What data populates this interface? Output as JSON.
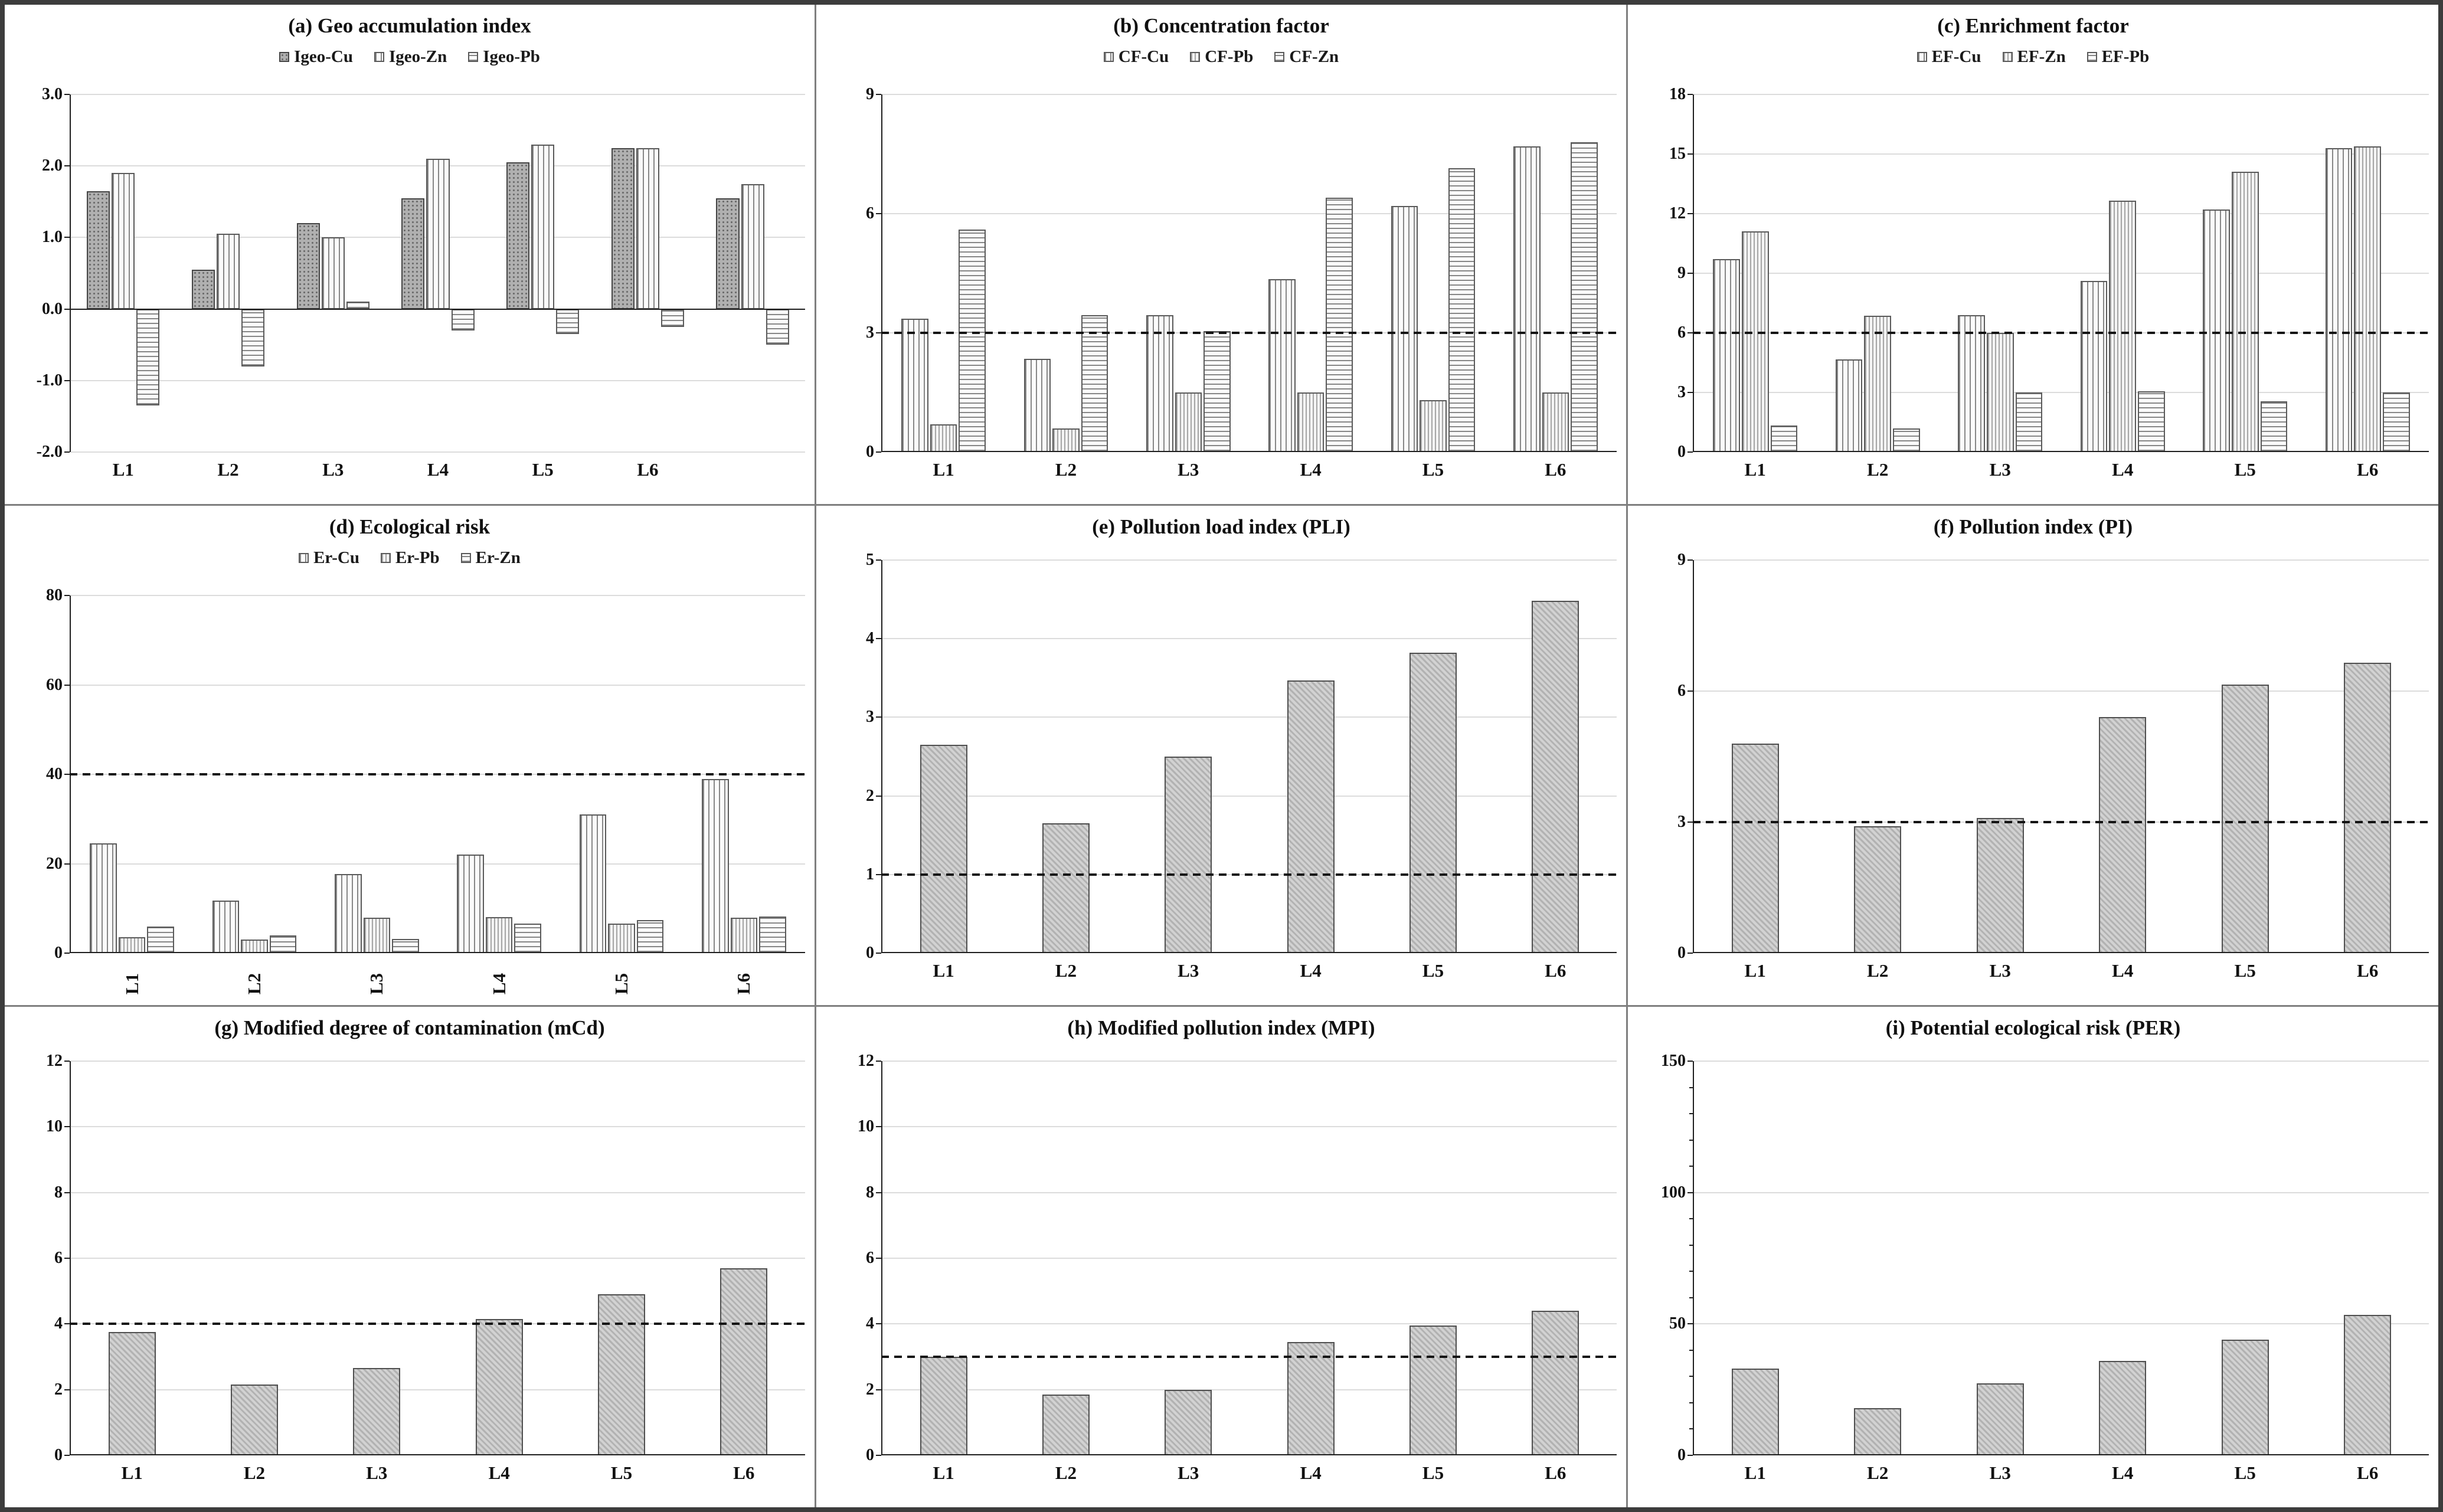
{
  "figure": {
    "background": "#ffffff",
    "outer_border_color": "#3c3c3c",
    "divider_color": "#7f7f7f",
    "gridline_color": "#dcdcdc",
    "axis_color": "#1f1f1f",
    "dashed_line_color": "#141414",
    "bar_gray": "#d2d2d2"
  },
  "chart_data": [
    {
      "key": "a",
      "type": "bar",
      "title": "(a) Geo accumulation index",
      "categories": [
        "L1",
        "L2",
        "L3",
        "L4",
        "L5",
        "L6",
        ""
      ],
      "series": [
        {
          "name": "Igeo-Cu",
          "pattern": "dots",
          "values": [
            1.65,
            0.55,
            1.2,
            1.55,
            2.05,
            2.25,
            1.55
          ]
        },
        {
          "name": "Igeo-Zn",
          "pattern": "vlines",
          "values": [
            1.9,
            1.05,
            1.0,
            2.1,
            2.3,
            2.25,
            1.75
          ]
        },
        {
          "name": "Igeo-Pb",
          "pattern": "hlines",
          "values": [
            -1.35,
            -0.8,
            0.1,
            -0.3,
            -0.35,
            -0.25,
            -0.5
          ]
        }
      ],
      "ylim": [
        -2,
        3
      ],
      "yticks": [
        3,
        2,
        1,
        0,
        -1,
        -2
      ],
      "ytick_decimals": 1,
      "yticks_minor_step": null,
      "dashed_y": null,
      "legend": true,
      "legend_position": "top",
      "grid": true,
      "rotate_xlabels": false
    },
    {
      "key": "b",
      "type": "bar",
      "title": "(b) Concentration factor",
      "categories": [
        "L1",
        "L2",
        "L3",
        "L4",
        "L5",
        "L6"
      ],
      "series": [
        {
          "name": "CF-Cu",
          "pattern": "vlines",
          "values": [
            3.35,
            2.35,
            3.45,
            4.35,
            6.2,
            7.7
          ]
        },
        {
          "name": "CF-Pb",
          "pattern": "vlines2",
          "values": [
            0.7,
            0.6,
            1.5,
            1.5,
            1.3,
            1.5
          ]
        },
        {
          "name": "CF-Zn",
          "pattern": "hlines",
          "values": [
            5.6,
            3.45,
            3.05,
            6.4,
            7.15,
            7.8
          ]
        }
      ],
      "ylim": [
        0,
        9
      ],
      "yticks": [
        9,
        6,
        3,
        0
      ],
      "ytick_decimals": 0,
      "yticks_minor_step": null,
      "dashed_y": 3,
      "legend": true,
      "legend_position": "top",
      "grid": true,
      "rotate_xlabels": false
    },
    {
      "key": "c",
      "type": "bar",
      "title": "(c) Enrichment factor",
      "categories": [
        "L1",
        "L2",
        "L3",
        "L4",
        "L5",
        "L6"
      ],
      "series": [
        {
          "name": "EF-Cu",
          "pattern": "vlines",
          "values": [
            9.7,
            4.65,
            6.9,
            8.6,
            12.2,
            15.3
          ]
        },
        {
          "name": "EF-Zn",
          "pattern": "vlines2",
          "values": [
            11.1,
            6.85,
            6.0,
            12.65,
            14.1,
            15.4
          ]
        },
        {
          "name": "EF-Pb",
          "pattern": "hlines",
          "values": [
            1.35,
            1.2,
            3.0,
            3.05,
            2.55,
            3.0
          ]
        }
      ],
      "ylim": [
        0,
        18
      ],
      "yticks": [
        18,
        15,
        12,
        9,
        6,
        3,
        0
      ],
      "ytick_decimals": 0,
      "yticks_minor_step": null,
      "dashed_y": 6,
      "legend": true,
      "legend_position": "top",
      "grid": true,
      "rotate_xlabels": false
    },
    {
      "key": "d",
      "type": "bar",
      "title": "(d) Ecological risk",
      "categories": [
        "L1",
        "L2",
        "L3",
        "L4",
        "L5",
        "L6"
      ],
      "series": [
        {
          "name": "Er-Cu",
          "pattern": "vlines",
          "values": [
            24.5,
            11.8,
            17.7,
            22.0,
            31.0,
            39.0
          ]
        },
        {
          "name": "Er-Pb",
          "pattern": "vlines2",
          "values": [
            3.5,
            3.0,
            7.9,
            8.0,
            6.6,
            7.9
          ]
        },
        {
          "name": "Er-Zn",
          "pattern": "hlines",
          "values": [
            5.9,
            3.9,
            3.2,
            6.6,
            7.4,
            8.2
          ]
        }
      ],
      "ylim": [
        0,
        80
      ],
      "yticks": [
        80,
        60,
        40,
        20,
        0
      ],
      "ytick_decimals": 0,
      "yticks_minor_step": null,
      "dashed_y": 40,
      "legend": true,
      "legend_position": "top",
      "grid": true,
      "rotate_xlabels": true
    },
    {
      "key": "e",
      "type": "bar",
      "title": "(e) Pollution load index (PLI)",
      "categories": [
        "L1",
        "L2",
        "L3",
        "L4",
        "L5",
        "L6"
      ],
      "series": [
        {
          "name": "PLI",
          "pattern": "diag",
          "values": [
            2.65,
            1.65,
            2.5,
            3.47,
            3.82,
            4.48
          ]
        }
      ],
      "ylim": [
        0,
        5
      ],
      "yticks": [
        5,
        4,
        3,
        2,
        1,
        0
      ],
      "ytick_decimals": 0,
      "yticks_minor_step": null,
      "dashed_y": 1,
      "legend": false,
      "legend_position": "none",
      "grid": true,
      "rotate_xlabels": false
    },
    {
      "key": "f",
      "type": "bar",
      "title": "(f) Pollution index (PI)",
      "categories": [
        "L1",
        "L2",
        "L3",
        "L4",
        "L5",
        "L6"
      ],
      "series": [
        {
          "name": "PI",
          "pattern": "diag",
          "values": [
            4.8,
            2.9,
            3.1,
            5.4,
            6.15,
            6.65
          ]
        }
      ],
      "ylim": [
        0,
        9
      ],
      "yticks": [
        9,
        6,
        3,
        0
      ],
      "ytick_decimals": 0,
      "yticks_minor_step": null,
      "dashed_y": 3,
      "legend": false,
      "legend_position": "none",
      "grid": true,
      "rotate_xlabels": false
    },
    {
      "key": "g",
      "type": "bar",
      "title": "(g) Modified degree of contamination (mCd)",
      "categories": [
        "L1",
        "L2",
        "L3",
        "L4",
        "L5",
        "L6"
      ],
      "series": [
        {
          "name": "mCd",
          "pattern": "diag",
          "values": [
            3.75,
            2.15,
            2.65,
            4.15,
            4.9,
            5.7
          ]
        }
      ],
      "ylim": [
        0,
        12
      ],
      "yticks": [
        12,
        10,
        8,
        6,
        4,
        2,
        0
      ],
      "ytick_decimals": 0,
      "yticks_minor_step": null,
      "dashed_y": 4,
      "legend": false,
      "legend_position": "none",
      "grid": true,
      "rotate_xlabels": false
    },
    {
      "key": "h",
      "type": "bar",
      "title": "(h) Modified pollution index (MPI)",
      "categories": [
        "L1",
        "L2",
        "L3",
        "L4",
        "L5",
        "L6"
      ],
      "series": [
        {
          "name": "MPI",
          "pattern": "diag",
          "values": [
            3.0,
            1.85,
            2.0,
            3.45,
            3.95,
            4.4
          ]
        }
      ],
      "ylim": [
        0,
        12
      ],
      "yticks": [
        12,
        10,
        8,
        6,
        4,
        2,
        0
      ],
      "ytick_decimals": 0,
      "yticks_minor_step": null,
      "dashed_y": 3,
      "legend": false,
      "legend_position": "none",
      "grid": true,
      "rotate_xlabels": false
    },
    {
      "key": "i",
      "type": "bar",
      "title": "(i) Potential ecological risk (PER)",
      "categories": [
        "L1",
        "L2",
        "L3",
        "L4",
        "L5",
        "L6"
      ],
      "series": [
        {
          "name": "PER",
          "pattern": "diag",
          "values": [
            33,
            18,
            27.5,
            36,
            44,
            53.5
          ]
        }
      ],
      "ylim": [
        0,
        150
      ],
      "yticks": [
        150,
        100,
        50,
        0
      ],
      "ytick_decimals": 0,
      "yticks_minor_step": 10,
      "dashed_y": null,
      "legend": false,
      "legend_position": "none",
      "grid": true,
      "rotate_xlabels": false
    }
  ]
}
